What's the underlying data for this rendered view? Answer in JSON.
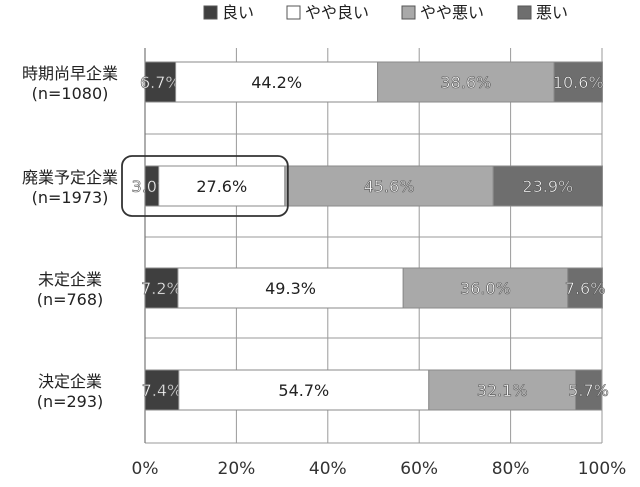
{
  "chart_data": {
    "type": "bar",
    "orientation": "horizontal",
    "stacked": true,
    "percent": true,
    "xlim": [
      0,
      100
    ],
    "x_ticks": [
      "0%",
      "20%",
      "40%",
      "60%",
      "80%",
      "100%"
    ],
    "grid": "vertical",
    "legend": "top",
    "legend_entries": [
      "良い",
      "やや良い",
      "やや悪い",
      "悪い"
    ],
    "categories": [
      {
        "name": "時期尚早企業",
        "n": "(n=1080)"
      },
      {
        "name": "廃業予定企業",
        "n": "(n=1973)"
      },
      {
        "name": "未定企業",
        "n": "(n=768)"
      },
      {
        "name": "決定企業",
        "n": "(n=293)"
      }
    ],
    "series": [
      {
        "name": "良い",
        "color": "#3f3f3f",
        "values": [
          6.7,
          3.0,
          7.2,
          7.4
        ],
        "labels": [
          "6.7%",
          "3.0%",
          "7.2%",
          "7.4%"
        ]
      },
      {
        "name": "やや良い",
        "color": "#ffffff",
        "values": [
          44.2,
          27.6,
          49.3,
          54.7
        ],
        "labels": [
          "44.2%",
          "27.6%",
          "49.3%",
          "54.7%"
        ]
      },
      {
        "name": "やや悪い",
        "color": "#a9a9a9",
        "values": [
          38.6,
          45.6,
          36.0,
          32.1
        ],
        "labels": [
          "38.6%",
          "45.6%",
          "36.0%",
          "32.1%"
        ]
      },
      {
        "name": "悪い",
        "color": "#6e6e6e",
        "values": [
          10.6,
          23.9,
          7.6,
          5.7
        ],
        "labels": [
          "10.6%",
          "23.9%",
          "7.6%",
          "5.7%"
        ]
      }
    ],
    "highlight": {
      "category_index": 1,
      "through_series_index": 1
    }
  }
}
